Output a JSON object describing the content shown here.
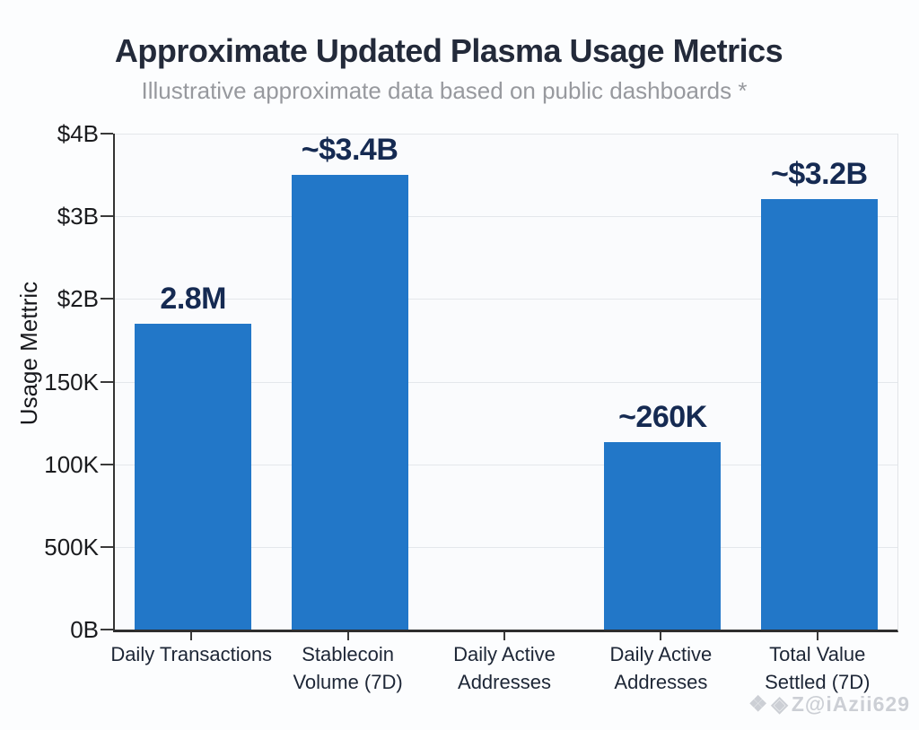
{
  "watermark": {
    "icon1": "❖",
    "icon2": "◈",
    "text": "Z@iAzii629"
  },
  "chart_data": {
    "type": "bar",
    "title": "Approximate Updated Plasma Usage Metrics",
    "subtitle": "Illustrative approximate data based on public dashboards *",
    "ylabel": "Usage Mettric",
    "xlabel": "",
    "y_ticks_top_to_bottom": [
      "$4B",
      "$3B",
      "$2B",
      "150K",
      "100K",
      "500K",
      "0B"
    ],
    "axis_units_range": [
      0,
      4
    ],
    "grid": true,
    "legend_position": "none",
    "bar_color": "#2277c8",
    "value_label_color": "#152a52",
    "categories": [
      [
        "Daily Transactions"
      ],
      [
        "Stablecoin",
        "Volume (7D)"
      ],
      [
        "Daily Active",
        "Addresses"
      ],
      [
        "Daily Active",
        "Addresses"
      ],
      [
        "Total Value",
        "Settled (7D)"
      ]
    ],
    "series": [
      {
        "name": "Usage Metric",
        "display_values": [
          "2.8M",
          "~$3.4B",
          "",
          "~260K",
          "~$3.2B"
        ],
        "bar_heights_axis_units": [
          2.47,
          3.67,
          0,
          1.51,
          3.47
        ]
      }
    ]
  }
}
